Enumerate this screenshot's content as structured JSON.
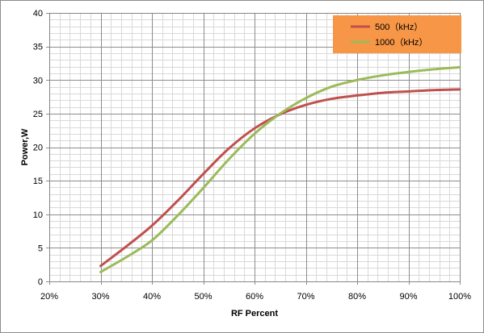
{
  "chart_data": {
    "type": "line",
    "title": "",
    "xlabel": "RF  Percent",
    "ylabel": "Power,W",
    "xlim": [
      20,
      100
    ],
    "ylim": [
      0,
      40
    ],
    "x_ticks": [
      "20%",
      "30%",
      "40%",
      "50%",
      "60%",
      "70%",
      "80%",
      "90%",
      "100%"
    ],
    "x_tick_values": [
      20,
      30,
      40,
      50,
      60,
      70,
      80,
      90,
      100
    ],
    "y_ticks": [
      "0",
      "5",
      "10",
      "15",
      "20",
      "25",
      "30",
      "35",
      "40"
    ],
    "y_tick_values": [
      0,
      5,
      10,
      15,
      20,
      25,
      30,
      35,
      40
    ],
    "grid": true,
    "legend_position": "top-right",
    "legend_background": "#f79646",
    "series": [
      {
        "name": "500（kHz）",
        "color": "#c0504d",
        "x": [
          30,
          35,
          40,
          45,
          50,
          55,
          60,
          65,
          70,
          75,
          80,
          85,
          90,
          95,
          100
        ],
        "y": [
          2.3,
          5.2,
          8.3,
          12.0,
          16.0,
          19.8,
          22.8,
          24.9,
          26.3,
          27.2,
          27.7,
          28.1,
          28.3,
          28.5,
          28.6
        ]
      },
      {
        "name": "1000（kHz）",
        "color": "#9bbb59",
        "x": [
          30,
          35,
          40,
          45,
          50,
          55,
          60,
          65,
          70,
          75,
          80,
          85,
          90,
          95,
          100
        ],
        "y": [
          1.4,
          3.6,
          6.1,
          9.8,
          13.9,
          18.2,
          22.0,
          25.0,
          27.3,
          29.0,
          30.0,
          30.7,
          31.2,
          31.6,
          31.9
        ]
      }
    ]
  }
}
